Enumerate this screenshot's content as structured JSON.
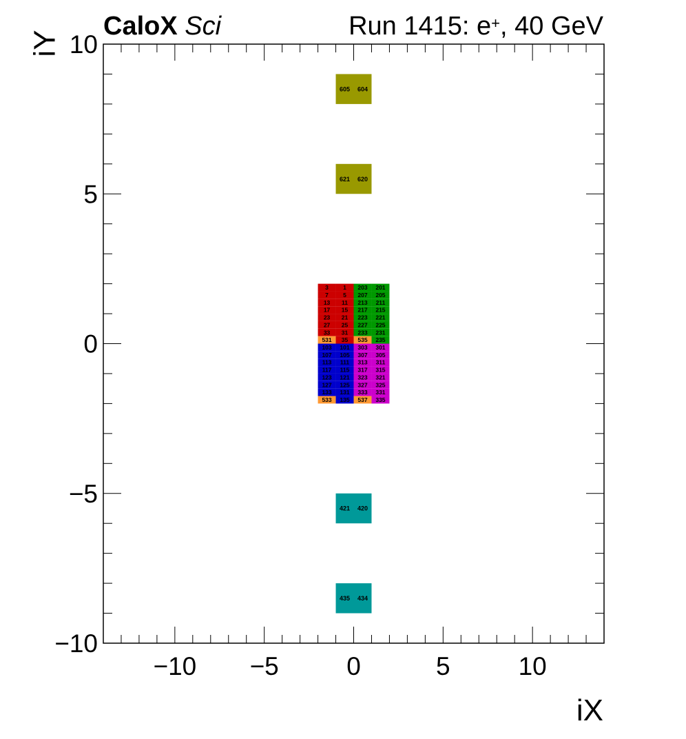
{
  "header": {
    "brand": "CaloX",
    "brand_suffix": "Sci",
    "run_prefix": "Run 1415: e",
    "run_sup": "+",
    "run_suffix": ", 40 GeV"
  },
  "chart_data": {
    "type": "heatmap",
    "xlabel": "iX",
    "ylabel": "iY",
    "xlim": [
      -14,
      14
    ],
    "ylim": [
      -10,
      10
    ],
    "xticks": [
      -10,
      -5,
      0,
      5,
      10
    ],
    "yticks": [
      -10,
      -5,
      0,
      5,
      10
    ],
    "xtick_labels": [
      "−10",
      "−5",
      "0",
      "5",
      "10"
    ],
    "ytick_labels": [
      "−10",
      "−5",
      "0",
      "5",
      "10"
    ],
    "grid": false,
    "colors": {
      "red": "#cc0000",
      "green": "#009900",
      "blue": "#0000cc",
      "magenta": "#cc00cc",
      "orange": "#ff9933",
      "olive": "#999900",
      "teal": "#009999"
    },
    "cells": [
      {
        "x0": -1,
        "x1": 0,
        "y0": 8,
        "y1": 9,
        "label": "605",
        "color": "olive"
      },
      {
        "x0": 0,
        "x1": 1,
        "y0": 8,
        "y1": 9,
        "label": "604",
        "color": "olive"
      },
      {
        "x0": -1,
        "x1": 0,
        "y0": 5,
        "y1": 6,
        "label": "621",
        "color": "olive"
      },
      {
        "x0": 0,
        "x1": 1,
        "y0": 5,
        "y1": 6,
        "label": "620",
        "color": "olive"
      },
      {
        "x0": -1,
        "x1": 0,
        "y0": -6,
        "y1": -5,
        "label": "421",
        "color": "teal"
      },
      {
        "x0": 0,
        "x1": 1,
        "y0": -6,
        "y1": -5,
        "label": "420",
        "color": "teal"
      },
      {
        "x0": -1,
        "x1": 0,
        "y0": -9,
        "y1": -8,
        "label": "435",
        "color": "teal"
      },
      {
        "x0": 0,
        "x1": 1,
        "y0": -9,
        "y1": -8,
        "label": "434",
        "color": "teal"
      },
      {
        "x0": -2,
        "x1": -1,
        "y0": 1.75,
        "y1": 2,
        "label": "3",
        "color": "red"
      },
      {
        "x0": -1,
        "x1": 0,
        "y0": 1.75,
        "y1": 2,
        "label": "1",
        "color": "red"
      },
      {
        "x0": 0,
        "x1": 1,
        "y0": 1.75,
        "y1": 2,
        "label": "203",
        "color": "green"
      },
      {
        "x0": 1,
        "x1": 2,
        "y0": 1.75,
        "y1": 2,
        "label": "201",
        "color": "green"
      },
      {
        "x0": -2,
        "x1": -1,
        "y0": 1.5,
        "y1": 1.75,
        "label": "7",
        "color": "red"
      },
      {
        "x0": -1,
        "x1": 0,
        "y0": 1.5,
        "y1": 1.75,
        "label": "5",
        "color": "red"
      },
      {
        "x0": 0,
        "x1": 1,
        "y0": 1.5,
        "y1": 1.75,
        "label": "207",
        "color": "green"
      },
      {
        "x0": 1,
        "x1": 2,
        "y0": 1.5,
        "y1": 1.75,
        "label": "205",
        "color": "green"
      },
      {
        "x0": -2,
        "x1": -1,
        "y0": 1.25,
        "y1": 1.5,
        "label": "13",
        "color": "red"
      },
      {
        "x0": -1,
        "x1": 0,
        "y0": 1.25,
        "y1": 1.5,
        "label": "11",
        "color": "red"
      },
      {
        "x0": 0,
        "x1": 1,
        "y0": 1.25,
        "y1": 1.5,
        "label": "213",
        "color": "green"
      },
      {
        "x0": 1,
        "x1": 2,
        "y0": 1.25,
        "y1": 1.5,
        "label": "211",
        "color": "green"
      },
      {
        "x0": -2,
        "x1": -1,
        "y0": 1,
        "y1": 1.25,
        "label": "17",
        "color": "red"
      },
      {
        "x0": -1,
        "x1": 0,
        "y0": 1,
        "y1": 1.25,
        "label": "15",
        "color": "red"
      },
      {
        "x0": 0,
        "x1": 1,
        "y0": 1,
        "y1": 1.25,
        "label": "217",
        "color": "green"
      },
      {
        "x0": 1,
        "x1": 2,
        "y0": 1,
        "y1": 1.25,
        "label": "215",
        "color": "green"
      },
      {
        "x0": -2,
        "x1": -1,
        "y0": 0.75,
        "y1": 1,
        "label": "23",
        "color": "red"
      },
      {
        "x0": -1,
        "x1": 0,
        "y0": 0.75,
        "y1": 1,
        "label": "21",
        "color": "red"
      },
      {
        "x0": 0,
        "x1": 1,
        "y0": 0.75,
        "y1": 1,
        "label": "223",
        "color": "green"
      },
      {
        "x0": 1,
        "x1": 2,
        "y0": 0.75,
        "y1": 1,
        "label": "221",
        "color": "green"
      },
      {
        "x0": -2,
        "x1": -1,
        "y0": 0.5,
        "y1": 0.75,
        "label": "27",
        "color": "red"
      },
      {
        "x0": -1,
        "x1": 0,
        "y0": 0.5,
        "y1": 0.75,
        "label": "25",
        "color": "red"
      },
      {
        "x0": 0,
        "x1": 1,
        "y0": 0.5,
        "y1": 0.75,
        "label": "227",
        "color": "green"
      },
      {
        "x0": 1,
        "x1": 2,
        "y0": 0.5,
        "y1": 0.75,
        "label": "225",
        "color": "green"
      },
      {
        "x0": -2,
        "x1": -1,
        "y0": 0.25,
        "y1": 0.5,
        "label": "33",
        "color": "red"
      },
      {
        "x0": -1,
        "x1": 0,
        "y0": 0.25,
        "y1": 0.5,
        "label": "31",
        "color": "red"
      },
      {
        "x0": 0,
        "x1": 1,
        "y0": 0.25,
        "y1": 0.5,
        "label": "233",
        "color": "green"
      },
      {
        "x0": 1,
        "x1": 2,
        "y0": 0.25,
        "y1": 0.5,
        "label": "231",
        "color": "green"
      },
      {
        "x0": -2,
        "x1": -1,
        "y0": 0,
        "y1": 0.25,
        "label": "531",
        "color": "orange"
      },
      {
        "x0": -1,
        "x1": 0,
        "y0": 0,
        "y1": 0.25,
        "label": "35",
        "color": "red"
      },
      {
        "x0": 0,
        "x1": 1,
        "y0": 0,
        "y1": 0.25,
        "label": "535",
        "color": "orange"
      },
      {
        "x0": 1,
        "x1": 2,
        "y0": 0,
        "y1": 0.25,
        "label": "235",
        "color": "green"
      },
      {
        "x0": -2,
        "x1": -1,
        "y0": -0.25,
        "y1": 0,
        "label": "103",
        "color": "blue"
      },
      {
        "x0": -1,
        "x1": 0,
        "y0": -0.25,
        "y1": 0,
        "label": "101",
        "color": "blue"
      },
      {
        "x0": 0,
        "x1": 1,
        "y0": -0.25,
        "y1": 0,
        "label": "303",
        "color": "magenta"
      },
      {
        "x0": 1,
        "x1": 2,
        "y0": -0.25,
        "y1": 0,
        "label": "301",
        "color": "magenta"
      },
      {
        "x0": -2,
        "x1": -1,
        "y0": -0.5,
        "y1": -0.25,
        "label": "107",
        "color": "blue"
      },
      {
        "x0": -1,
        "x1": 0,
        "y0": -0.5,
        "y1": -0.25,
        "label": "105",
        "color": "blue"
      },
      {
        "x0": 0,
        "x1": 1,
        "y0": -0.5,
        "y1": -0.25,
        "label": "307",
        "color": "magenta"
      },
      {
        "x0": 1,
        "x1": 2,
        "y0": -0.5,
        "y1": -0.25,
        "label": "305",
        "color": "magenta"
      },
      {
        "x0": -2,
        "x1": -1,
        "y0": -0.75,
        "y1": -0.5,
        "label": "113",
        "color": "blue"
      },
      {
        "x0": -1,
        "x1": 0,
        "y0": -0.75,
        "y1": -0.5,
        "label": "111",
        "color": "blue"
      },
      {
        "x0": 0,
        "x1": 1,
        "y0": -0.75,
        "y1": -0.5,
        "label": "313",
        "color": "magenta"
      },
      {
        "x0": 1,
        "x1": 2,
        "y0": -0.75,
        "y1": -0.5,
        "label": "311",
        "color": "magenta"
      },
      {
        "x0": -2,
        "x1": -1,
        "y0": -1,
        "y1": -0.75,
        "label": "117",
        "color": "blue"
      },
      {
        "x0": -1,
        "x1": 0,
        "y0": -1,
        "y1": -0.75,
        "label": "115",
        "color": "blue"
      },
      {
        "x0": 0,
        "x1": 1,
        "y0": -1,
        "y1": -0.75,
        "label": "317",
        "color": "magenta"
      },
      {
        "x0": 1,
        "x1": 2,
        "y0": -1,
        "y1": -0.75,
        "label": "315",
        "color": "magenta"
      },
      {
        "x0": -2,
        "x1": -1,
        "y0": -1.25,
        "y1": -1,
        "label": "123",
        "color": "blue"
      },
      {
        "x0": -1,
        "x1": 0,
        "y0": -1.25,
        "y1": -1,
        "label": "121",
        "color": "blue"
      },
      {
        "x0": 0,
        "x1": 1,
        "y0": -1.25,
        "y1": -1,
        "label": "323",
        "color": "magenta"
      },
      {
        "x0": 1,
        "x1": 2,
        "y0": -1.25,
        "y1": -1,
        "label": "321",
        "color": "magenta"
      },
      {
        "x0": -2,
        "x1": -1,
        "y0": -1.5,
        "y1": -1.25,
        "label": "127",
        "color": "blue"
      },
      {
        "x0": -1,
        "x1": 0,
        "y0": -1.5,
        "y1": -1.25,
        "label": "125",
        "color": "blue"
      },
      {
        "x0": 0,
        "x1": 1,
        "y0": -1.5,
        "y1": -1.25,
        "label": "327",
        "color": "magenta"
      },
      {
        "x0": 1,
        "x1": 2,
        "y0": -1.5,
        "y1": -1.25,
        "label": "325",
        "color": "magenta"
      },
      {
        "x0": -2,
        "x1": -1,
        "y0": -1.75,
        "y1": -1.5,
        "label": "133",
        "color": "blue"
      },
      {
        "x0": -1,
        "x1": 0,
        "y0": -1.75,
        "y1": -1.5,
        "label": "131",
        "color": "blue"
      },
      {
        "x0": 0,
        "x1": 1,
        "y0": -1.75,
        "y1": -1.5,
        "label": "333",
        "color": "magenta"
      },
      {
        "x0": 1,
        "x1": 2,
        "y0": -1.75,
        "y1": -1.5,
        "label": "331",
        "color": "magenta"
      },
      {
        "x0": -2,
        "x1": -1,
        "y0": -2,
        "y1": -1.75,
        "label": "533",
        "color": "orange"
      },
      {
        "x0": -1,
        "x1": 0,
        "y0": -2,
        "y1": -1.75,
        "label": "135",
        "color": "blue"
      },
      {
        "x0": 0,
        "x1": 1,
        "y0": -2,
        "y1": -1.75,
        "label": "537",
        "color": "orange"
      },
      {
        "x0": 1,
        "x1": 2,
        "y0": -2,
        "y1": -1.75,
        "label": "335",
        "color": "magenta"
      }
    ]
  }
}
